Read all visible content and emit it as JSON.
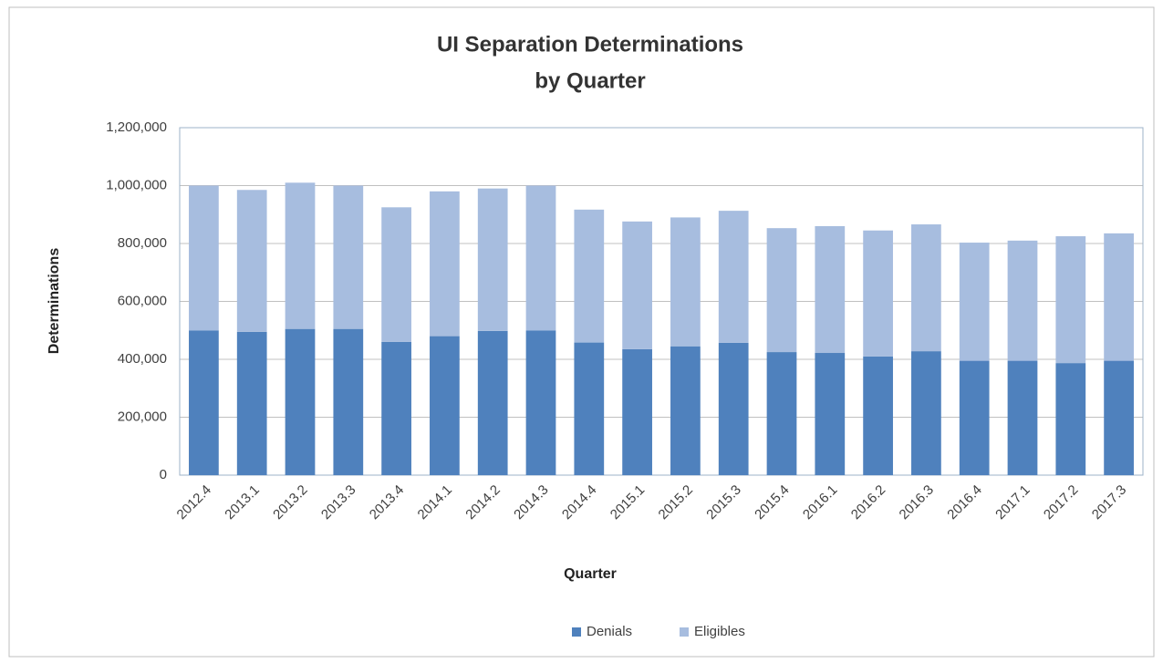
{
  "chart_data": {
    "type": "stacked-bar",
    "title": [
      "UI Separation Determinations",
      "by Quarter"
    ],
    "x_label": "Quarter",
    "y_label": "Determinations",
    "categories": [
      "2012.4",
      "2013.1",
      "2013.2",
      "2013.3",
      "2013.4",
      "2014.1",
      "2014.2",
      "2014.3",
      "2014.4",
      "2015.1",
      "2015.2",
      "2015.3",
      "2015.4",
      "2016.1",
      "2016.2",
      "2016.3",
      "2016.4",
      "2017.1",
      "2017.2",
      "2017.3"
    ],
    "series": [
      {
        "name": "Denials",
        "color": "#4f81bd",
        "values": [
          500000,
          495000,
          505000,
          505000,
          460000,
          480000,
          498000,
          500000,
          458000,
          435000,
          445000,
          457000,
          425000,
          422000,
          410000,
          428000,
          395000,
          395000,
          387000,
          395000
        ]
      },
      {
        "name": "Eligibles",
        "color": "#a7bddf",
        "values": [
          500000,
          490000,
          505000,
          495000,
          465000,
          500000,
          492000,
          500000,
          459000,
          441000,
          445000,
          456000,
          428000,
          438000,
          435000,
          438000,
          408000,
          415000,
          438000,
          440000
        ]
      }
    ],
    "ylim": [
      0,
      1200000
    ],
    "yticks": [
      0,
      {
        "value": 200000,
        "label": "200,000"
      },
      {
        "value": 400000,
        "label": "400,000"
      },
      {
        "value": 600000,
        "label": "600,000"
      },
      {
        "value": 800000,
        "label": "800,000"
      },
      {
        "value": 1000000,
        "label": "1,000,000"
      },
      {
        "value": 1200000,
        "label": "1,200,000"
      }
    ],
    "grid": true,
    "legend": "bottom"
  }
}
